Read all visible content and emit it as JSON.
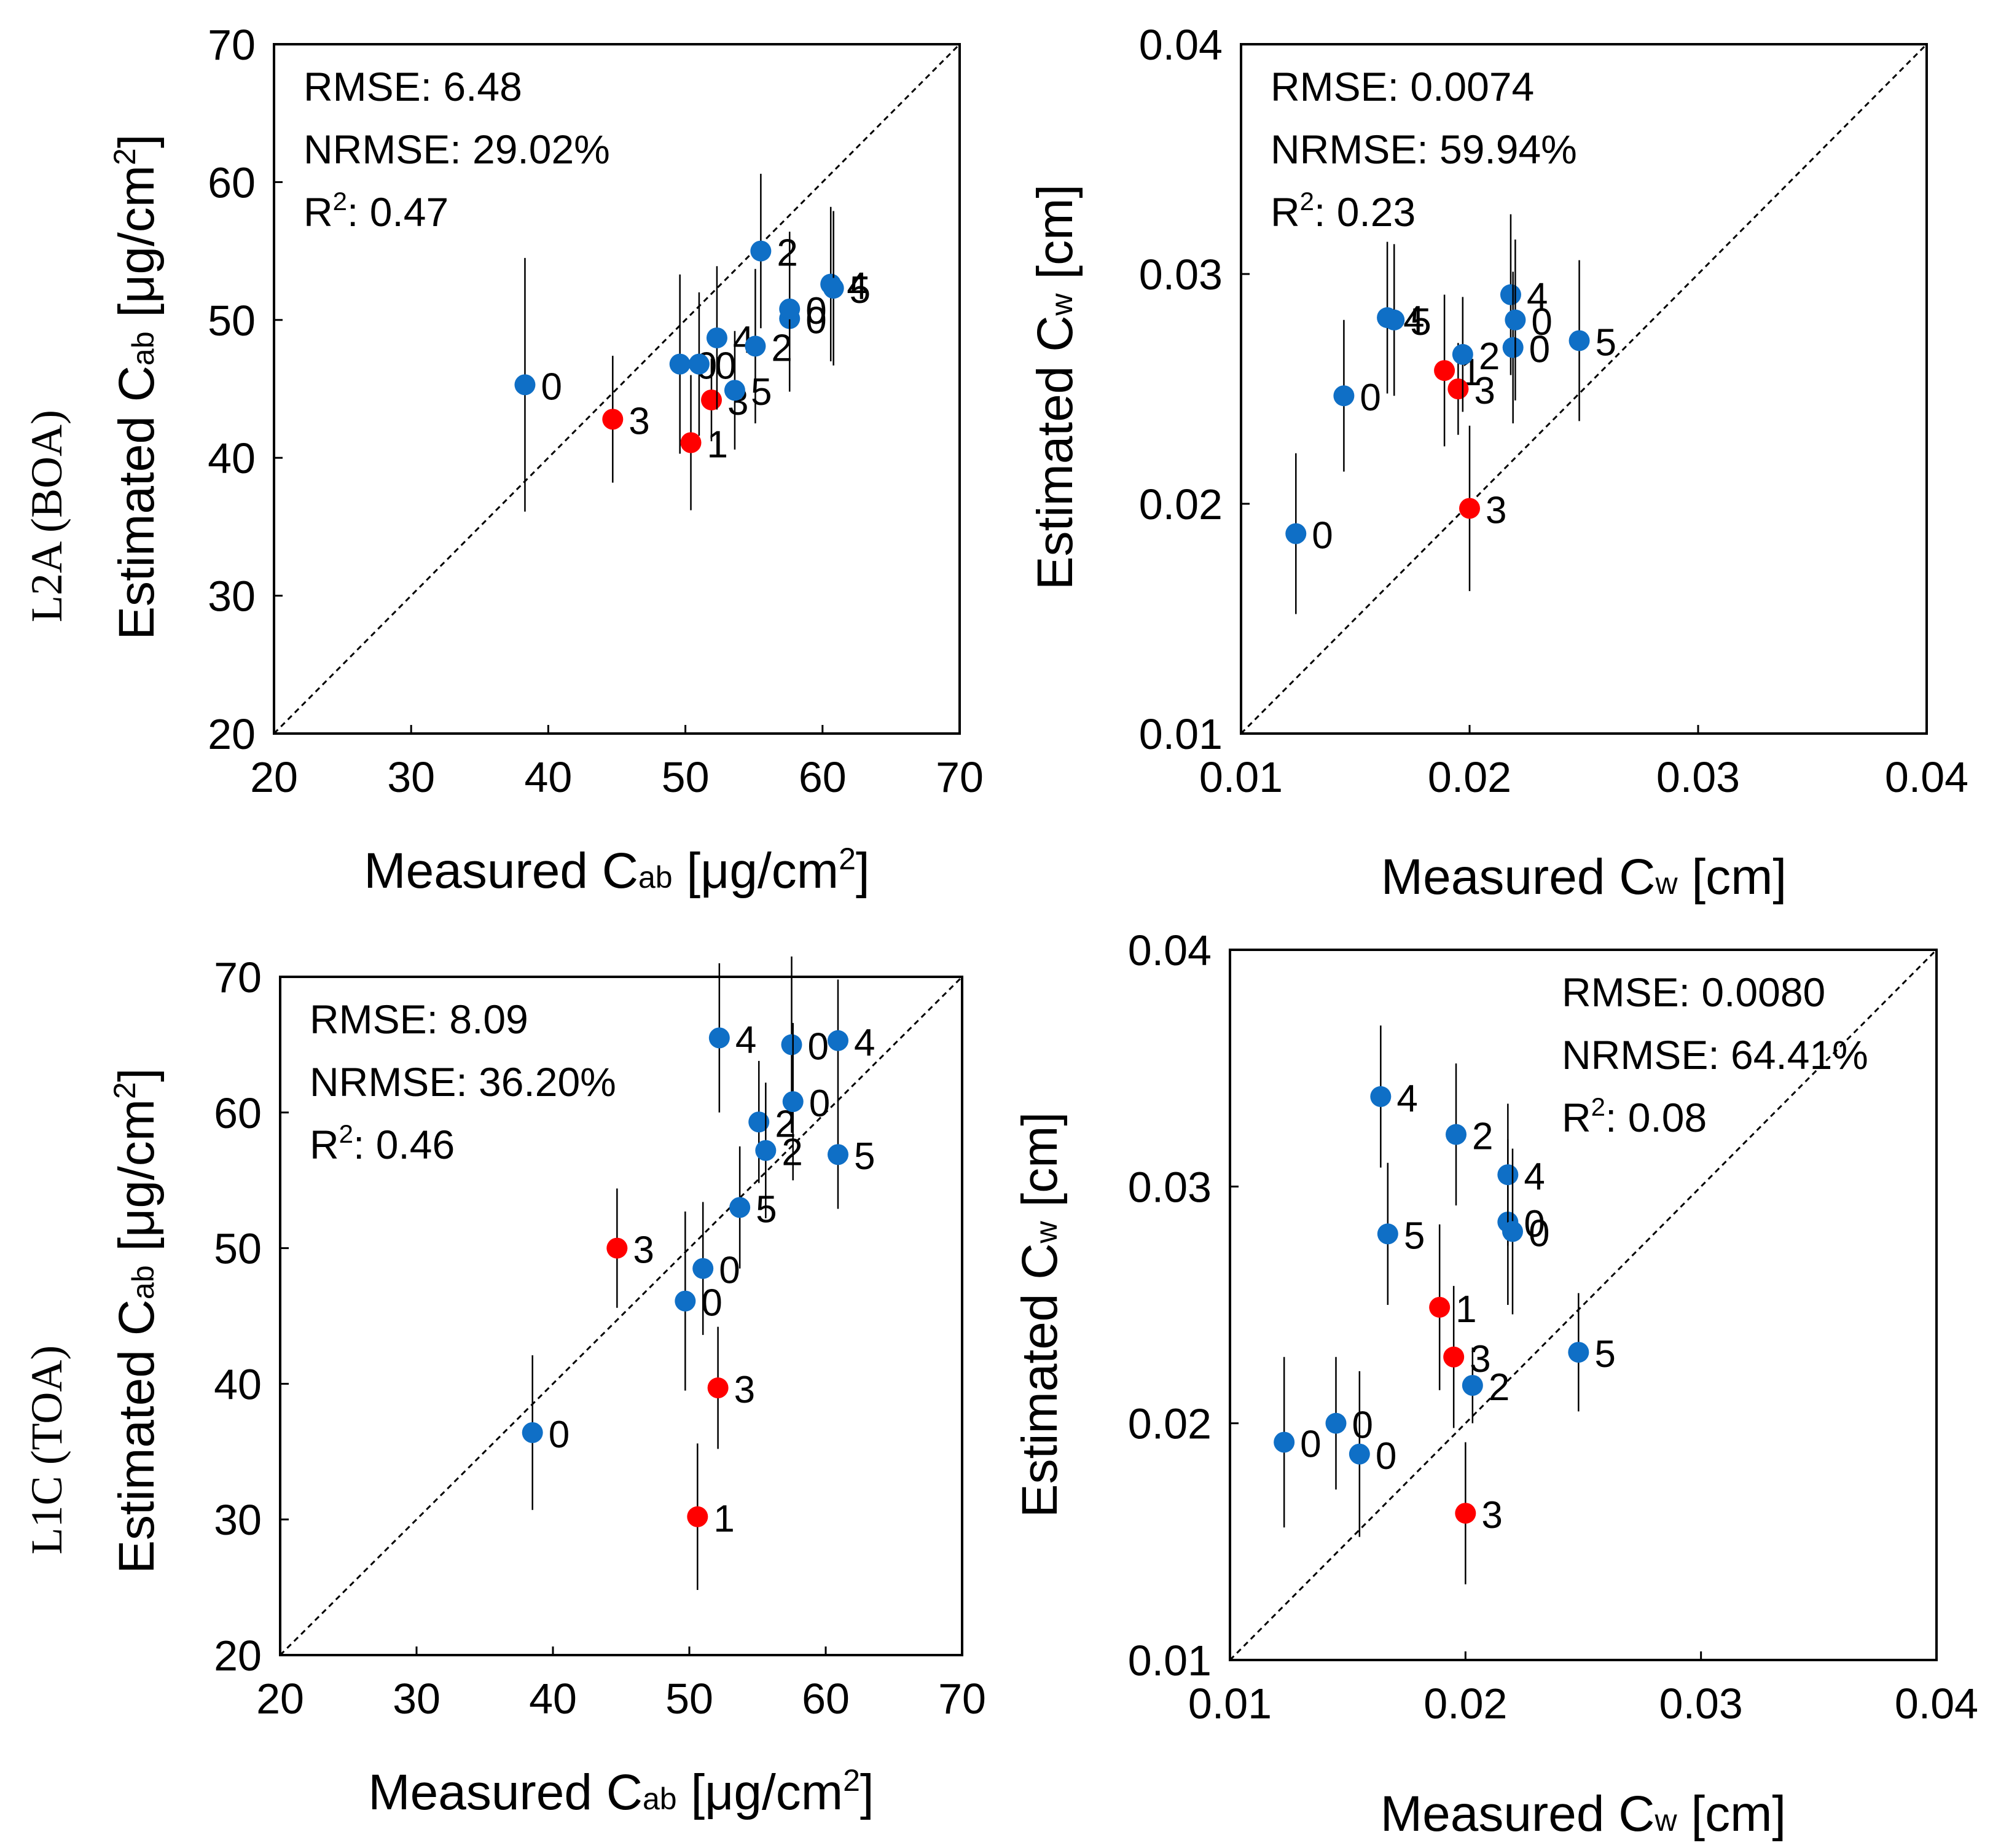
{
  "row_labels": {
    "top": "L2A (BOA)",
    "bottom": "L1C (TOA)"
  },
  "colors": {
    "blue": "#0f6fc6",
    "red": "#ff0000"
  },
  "chart_data": [
    {
      "type": "scatter",
      "id": "boa-cab",
      "xlabel": {
        "main": "Measured C",
        "sub": "ab",
        "units": " [μg/cm",
        "sup": "2",
        "close": "]"
      },
      "ylabel": {
        "main": "Estimated C",
        "sub": "ab",
        "units": " [μg/cm",
        "sup": "2",
        "close": "]"
      },
      "xlim": [
        20,
        70
      ],
      "ylim": [
        20,
        70
      ],
      "xticks": [
        20,
        30,
        40,
        50,
        60,
        70
      ],
      "yticks": [
        20,
        30,
        40,
        50,
        60,
        70
      ],
      "tick_labels_x": [
        "20",
        "30",
        "40",
        "50",
        "60",
        "70"
      ],
      "tick_labels_y": [
        "20",
        "30",
        "40",
        "50",
        "60",
        "70"
      ],
      "stats": {
        "rmse": "RMSE: 6.48",
        "nrmse": "NRMSE: 29.02%",
        "r2_prefix": "R",
        "r2_sup": "2",
        "r2_value": ": 0.47",
        "placement": "top-left"
      },
      "one_to_one_line": true,
      "points": [
        {
          "x": 38.3,
          "y": 45.3,
          "err": 9.2,
          "label": "0",
          "color": "blue"
        },
        {
          "x": 44.7,
          "y": 42.8,
          "err": 4.6,
          "label": "3",
          "color": "red"
        },
        {
          "x": 49.6,
          "y": 46.8,
          "err": 6.5,
          "label": "0",
          "color": "blue"
        },
        {
          "x": 50.4,
          "y": 41.1,
          "err": 4.9,
          "label": "1",
          "color": "red"
        },
        {
          "x": 51.0,
          "y": 46.8,
          "err": 5.2,
          "label": "0",
          "color": "blue"
        },
        {
          "x": 51.9,
          "y": 44.2,
          "err": 3.0,
          "label": "3",
          "color": "red"
        },
        {
          "x": 52.3,
          "y": 48.7,
          "err": 5.2,
          "label": "4",
          "color": "blue"
        },
        {
          "x": 53.6,
          "y": 44.9,
          "err": 4.3,
          "label": "5",
          "color": "blue"
        },
        {
          "x": 55.1,
          "y": 48.1,
          "err": 5.6,
          "label": "2",
          "color": "blue"
        },
        {
          "x": 55.5,
          "y": 55.0,
          "err": 5.6,
          "label": "2",
          "color": "blue"
        },
        {
          "x": 57.6,
          "y": 50.1,
          "err": 5.3,
          "label": "0",
          "color": "blue"
        },
        {
          "x": 57.6,
          "y": 50.8,
          "err": 5.6,
          "label": "0",
          "color": "blue"
        },
        {
          "x": 60.6,
          "y": 52.6,
          "err": 5.6,
          "label": "4",
          "color": "blue"
        },
        {
          "x": 60.8,
          "y": 52.3,
          "err": 5.6,
          "label": "5",
          "color": "blue"
        }
      ]
    },
    {
      "type": "scatter",
      "id": "boa-cw",
      "xlabel": {
        "main": "Measured C",
        "sub": "w",
        "units": " [cm]",
        "sup": "",
        "close": ""
      },
      "ylabel": {
        "main": "Estimated C",
        "sub": "w",
        "units": " [cm]",
        "sup": "",
        "close": ""
      },
      "xlim": [
        0.01,
        0.04
      ],
      "ylim": [
        0.01,
        0.04
      ],
      "xticks": [
        0.01,
        0.02,
        0.03,
        0.04
      ],
      "yticks": [
        0.01,
        0.02,
        0.03,
        0.04
      ],
      "tick_labels_x": [
        "0.01",
        "0.02",
        "0.03",
        "0.04"
      ],
      "tick_labels_y": [
        "0.01",
        "0.02",
        "0.03",
        "0.04"
      ],
      "stats": {
        "rmse": "RMSE: 0.0074",
        "nrmse": "NRMSE: 59.94%",
        "r2_prefix": "R",
        "r2_sup": "2",
        "r2_value": ": 0.23",
        "placement": "top-left"
      },
      "one_to_one_line": true,
      "points": [
        {
          "x": 0.0124,
          "y": 0.0187,
          "err": 0.0035,
          "label": "0",
          "color": "blue"
        },
        {
          "x": 0.0145,
          "y": 0.0247,
          "err": 0.0033,
          "label": "0",
          "color": "blue"
        },
        {
          "x": 0.0164,
          "y": 0.0281,
          "err": 0.0033,
          "label": "4",
          "color": "blue"
        },
        {
          "x": 0.0167,
          "y": 0.028,
          "err": 0.0033,
          "label": "5",
          "color": "blue"
        },
        {
          "x": 0.0189,
          "y": 0.0258,
          "err": 0.0033,
          "label": "1",
          "color": "red"
        },
        {
          "x": 0.0195,
          "y": 0.025,
          "err": 0.002,
          "label": "3",
          "color": "red"
        },
        {
          "x": 0.0197,
          "y": 0.0265,
          "err": 0.0025,
          "label": "2",
          "color": "blue"
        },
        {
          "x": 0.02,
          "y": 0.0198,
          "err": 0.0036,
          "label": "3",
          "color": "red"
        },
        {
          "x": 0.0218,
          "y": 0.0291,
          "err": 0.0035,
          "label": "4",
          "color": "blue"
        },
        {
          "x": 0.0219,
          "y": 0.0268,
          "err": 0.0033,
          "label": "0",
          "color": "blue"
        },
        {
          "x": 0.022,
          "y": 0.028,
          "err": 0.0035,
          "label": "0",
          "color": "blue"
        },
        {
          "x": 0.0248,
          "y": 0.0271,
          "err": 0.0035,
          "label": "5",
          "color": "blue"
        }
      ]
    },
    {
      "type": "scatter",
      "id": "toa-cab",
      "xlabel": {
        "main": "Measured C",
        "sub": "ab",
        "units": " [μg/cm",
        "sup": "2",
        "close": "]"
      },
      "ylabel": {
        "main": "Estimated C",
        "sub": "ab",
        "units": " [μg/cm",
        "sup": "2",
        "close": "]"
      },
      "xlim": [
        20,
        70
      ],
      "ylim": [
        20,
        70
      ],
      "xticks": [
        20,
        30,
        40,
        50,
        60,
        70
      ],
      "yticks": [
        20,
        30,
        40,
        50,
        60,
        70
      ],
      "tick_labels_x": [
        "20",
        "30",
        "40",
        "50",
        "60",
        "70"
      ],
      "tick_labels_y": [
        "20",
        "30",
        "40",
        "50",
        "60",
        "70"
      ],
      "stats": {
        "rmse": "RMSE: 8.09",
        "nrmse": "NRMSE: 36.20%",
        "r2_prefix": "R",
        "r2_sup": "2",
        "r2_value": ": 0.46",
        "placement": "top-left"
      },
      "one_to_one_line": true,
      "points": [
        {
          "x": 38.5,
          "y": 36.4,
          "err": 5.7,
          "label": "0",
          "color": "blue"
        },
        {
          "x": 44.7,
          "y": 50.0,
          "err": 4.4,
          "label": "3",
          "color": "red"
        },
        {
          "x": 49.7,
          "y": 46.1,
          "err": 6.6,
          "label": "0",
          "color": "blue"
        },
        {
          "x": 50.6,
          "y": 30.2,
          "err": 5.4,
          "label": "1",
          "color": "red"
        },
        {
          "x": 51.0,
          "y": 48.5,
          "err": 4.9,
          "label": "0",
          "color": "blue"
        },
        {
          "x": 52.1,
          "y": 39.7,
          "err": 4.5,
          "label": "3",
          "color": "red"
        },
        {
          "x": 52.2,
          "y": 65.5,
          "err": 5.5,
          "label": "4",
          "color": "blue"
        },
        {
          "x": 53.7,
          "y": 53.0,
          "err": 4.5,
          "label": "5",
          "color": "blue"
        },
        {
          "x": 55.1,
          "y": 59.3,
          "err": 4.5,
          "label": "2",
          "color": "blue"
        },
        {
          "x": 55.6,
          "y": 57.2,
          "err": 5.0,
          "label": "2",
          "color": "blue"
        },
        {
          "x": 57.5,
          "y": 65.0,
          "err": 6.5,
          "label": "0",
          "color": "blue"
        },
        {
          "x": 57.6,
          "y": 60.8,
          "err": 5.8,
          "label": "0",
          "color": "blue"
        },
        {
          "x": 60.9,
          "y": 65.3,
          "err": 4.5,
          "label": "4",
          "color": "blue"
        },
        {
          "x": 60.9,
          "y": 56.9,
          "err": 4.0,
          "label": "5",
          "color": "blue"
        }
      ]
    },
    {
      "type": "scatter",
      "id": "toa-cw",
      "xlabel": {
        "main": "Measured C",
        "sub": "w",
        "units": " [cm]",
        "sup": "",
        "close": ""
      },
      "ylabel": {
        "main": "Estimated C",
        "sub": "w",
        "units": " [cm]",
        "sup": "",
        "close": ""
      },
      "xlim": [
        0.01,
        0.04
      ],
      "ylim": [
        0.01,
        0.04
      ],
      "xticks": [
        0.01,
        0.02,
        0.03,
        0.04
      ],
      "yticks": [
        0.01,
        0.02,
        0.03,
        0.04
      ],
      "tick_labels_x": [
        "0.01",
        "0.02",
        "0.03",
        "0.04"
      ],
      "tick_labels_y": [
        "0.01",
        "0.02",
        "0.03",
        "0.04"
      ],
      "stats": {
        "rmse": "RMSE: 0.0080",
        "nrmse": "NRMSE: 64.41%",
        "r2_prefix": "R",
        "r2_sup": "2",
        "r2_value": ": 0.08",
        "placement": "top-right"
      },
      "one_to_one_line": true,
      "points": [
        {
          "x": 0.0123,
          "y": 0.0192,
          "err": 0.0036,
          "label": "0",
          "color": "blue"
        },
        {
          "x": 0.0145,
          "y": 0.02,
          "err": 0.0028,
          "label": "0",
          "color": "blue"
        },
        {
          "x": 0.0155,
          "y": 0.0187,
          "err": 0.0035,
          "label": "0",
          "color": "blue"
        },
        {
          "x": 0.0164,
          "y": 0.0338,
          "err": 0.003,
          "label": "4",
          "color": "blue"
        },
        {
          "x": 0.0167,
          "y": 0.028,
          "err": 0.003,
          "label": "5",
          "color": "blue"
        },
        {
          "x": 0.0189,
          "y": 0.0249,
          "err": 0.0035,
          "label": "1",
          "color": "red"
        },
        {
          "x": 0.0195,
          "y": 0.0228,
          "err": 0.003,
          "label": "3",
          "color": "red"
        },
        {
          "x": 0.0196,
          "y": 0.0322,
          "err": 0.003,
          "label": "2",
          "color": "blue"
        },
        {
          "x": 0.02,
          "y": 0.0162,
          "err": 0.003,
          "label": "3",
          "color": "red"
        },
        {
          "x": 0.0203,
          "y": 0.0216,
          "err": 0.0016,
          "label": "2",
          "color": "blue"
        },
        {
          "x": 0.0218,
          "y": 0.0285,
          "err": 0.0035,
          "label": "0",
          "color": "blue"
        },
        {
          "x": 0.0218,
          "y": 0.0305,
          "err": 0.003,
          "label": "4",
          "color": "blue"
        },
        {
          "x": 0.022,
          "y": 0.0281,
          "err": 0.0035,
          "label": "0",
          "color": "blue"
        },
        {
          "x": 0.0248,
          "y": 0.023,
          "err": 0.0025,
          "label": "5",
          "color": "blue"
        }
      ]
    }
  ]
}
